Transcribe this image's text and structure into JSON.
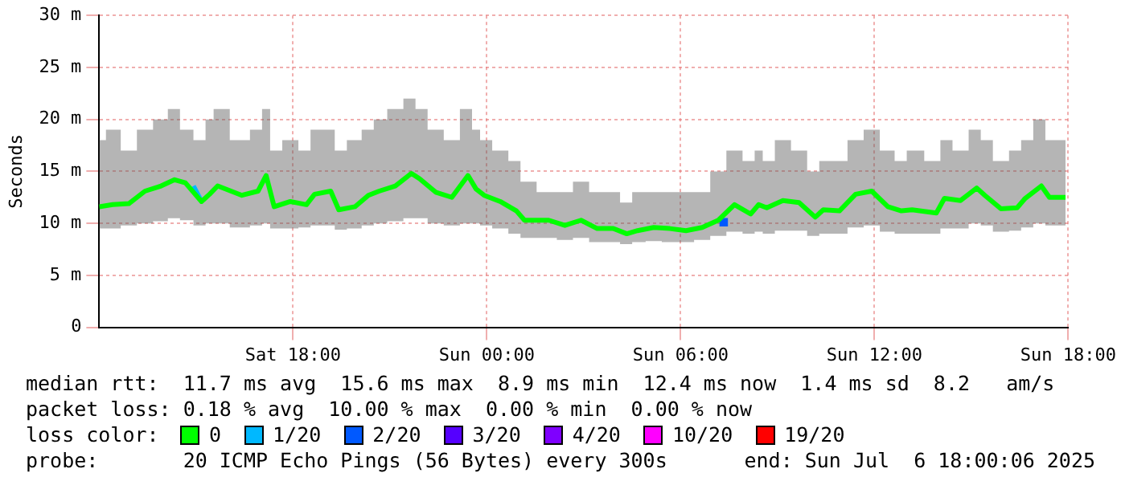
{
  "chart_data": {
    "type": "line",
    "ylabel": "Seconds",
    "xlim": [
      "2025-07-05T12:00",
      "2025-07-06T18:00"
    ],
    "xticks": [
      {
        "value": "2025-07-05T18:00",
        "label": "Sat 18:00"
      },
      {
        "value": "2025-07-06T00:00",
        "label": "Sun 00:00"
      },
      {
        "value": "2025-07-06T06:00",
        "label": "Sun 06:00"
      },
      {
        "value": "2025-07-06T12:00",
        "label": "Sun 12:00"
      },
      {
        "value": "2025-07-06T18:00",
        "label": "Sun 18:00"
      }
    ],
    "ylim": [
      0,
      30
    ],
    "yticks": [
      0,
      {
        "value": 5,
        "label": "5 m"
      },
      {
        "value": 10,
        "label": "10 m"
      },
      {
        "value": 15,
        "label": "15 m"
      },
      {
        "value": 20,
        "label": "20 m"
      },
      {
        "value": 25,
        "label": "25 m"
      },
      {
        "value": 30,
        "label": "30 m"
      }
    ],
    "grid": true,
    "legend": "bottom",
    "legend_title": "loss color:",
    "marker": "none",
    "line_style": "solid",
    "series": [
      {
        "name": "0",
        "color": "#00ff00",
        "type": "line",
        "x": [
          "2025-07-05T12:00",
          "2025-07-05T12:25",
          "2025-07-05T12:55",
          "2025-07-05T13:25",
          "2025-07-05T13:55",
          "2025-07-05T14:20",
          "2025-07-05T14:40",
          "2025-07-05T15:10",
          "2025-07-05T15:25",
          "2025-07-05T15:40",
          "2025-07-05T16:25",
          "2025-07-05T16:55",
          "2025-07-05T17:10",
          "2025-07-05T17:25",
          "2025-07-05T17:55",
          "2025-07-05T18:25",
          "2025-07-05T18:40",
          "2025-07-05T19:10",
          "2025-07-05T19:25",
          "2025-07-05T19:55",
          "2025-07-05T20:20",
          "2025-07-05T20:40",
          "2025-07-05T21:10",
          "2025-07-05T21:40",
          "2025-07-05T21:55",
          "2025-07-05T22:25",
          "2025-07-05T22:55",
          "2025-07-05T23:25",
          "2025-07-05T23:40",
          "2025-07-05T23:55",
          "2025-07-06T00:25",
          "2025-07-06T00:55",
          "2025-07-06T01:10",
          "2025-07-06T01:55",
          "2025-07-06T02:25",
          "2025-07-06T02:55",
          "2025-07-06T03:25",
          "2025-07-06T03:55",
          "2025-07-06T04:20",
          "2025-07-06T04:40",
          "2025-07-06T05:10",
          "2025-07-06T05:40",
          "2025-07-06T06:10",
          "2025-07-06T06:40",
          "2025-07-06T07:10",
          "2025-07-06T07:40",
          "2025-07-06T08:10",
          "2025-07-06T08:25",
          "2025-07-06T08:40",
          "2025-07-06T09:10",
          "2025-07-06T09:40",
          "2025-07-06T10:10",
          "2025-07-06T10:25",
          "2025-07-06T10:55",
          "2025-07-06T11:25",
          "2025-07-06T11:55",
          "2025-07-06T12:25",
          "2025-07-06T12:50",
          "2025-07-06T13:10",
          "2025-07-06T13:55",
          "2025-07-06T14:10",
          "2025-07-06T14:40",
          "2025-07-06T15:10",
          "2025-07-06T15:25",
          "2025-07-06T15:55",
          "2025-07-06T16:25",
          "2025-07-06T16:40",
          "2025-07-06T17:10",
          "2025-07-06T17:25",
          "2025-07-06T17:55"
        ],
        "values": [
          11.6,
          11.8,
          11.9,
          13.1,
          13.6,
          14.2,
          13.9,
          12.1,
          12.8,
          13.6,
          12.7,
          13.1,
          14.6,
          11.6,
          12.1,
          11.8,
          12.8,
          13.1,
          11.3,
          11.6,
          12.7,
          13.1,
          13.6,
          14.8,
          14.3,
          13.0,
          12.5,
          14.6,
          13.3,
          12.7,
          12.1,
          11.2,
          10.3,
          10.3,
          9.8,
          10.3,
          9.5,
          9.5,
          9.0,
          9.3,
          9.6,
          9.5,
          9.3,
          9.6,
          10.3,
          11.8,
          10.9,
          11.8,
          11.5,
          12.2,
          12.0,
          10.6,
          11.3,
          11.2,
          12.8,
          13.1,
          11.6,
          11.2,
          11.3,
          11.0,
          12.4,
          12.2,
          13.4,
          12.7,
          11.4,
          11.5,
          12.4,
          13.6,
          12.5,
          12.5
        ],
        "lower": [
          9.5,
          9.5,
          9.8,
          10.0,
          10.2,
          10.5,
          10.3,
          9.8,
          10.0,
          10.0,
          9.6,
          9.8,
          10.0,
          9.5,
          9.5,
          9.6,
          9.8,
          9.8,
          9.4,
          9.5,
          9.8,
          10.0,
          10.2,
          10.5,
          10.5,
          10.0,
          9.8,
          10.0,
          10.0,
          9.8,
          9.5,
          9.0,
          8.6,
          8.6,
          8.4,
          8.6,
          8.2,
          8.2,
          8.0,
          8.2,
          8.3,
          8.2,
          8.2,
          8.4,
          8.8,
          9.2,
          9.0,
          9.2,
          9.0,
          9.3,
          9.3,
          8.8,
          9.0,
          9.0,
          9.6,
          9.8,
          9.2,
          9.0,
          9.0,
          9.0,
          9.5,
          9.5,
          10.0,
          9.8,
          9.2,
          9.3,
          9.6,
          10.0,
          9.8,
          9.8
        ],
        "upper": [
          18,
          19,
          17,
          19,
          20,
          21,
          19,
          18,
          20,
          21,
          18,
          19,
          21,
          17,
          18,
          17,
          19,
          19,
          17,
          18,
          19,
          20,
          21,
          22,
          21,
          19,
          18,
          21,
          19,
          18,
          17,
          16,
          14,
          13,
          13,
          14,
          13,
          13,
          12,
          13,
          13,
          13,
          13,
          13,
          15,
          17,
          16,
          17,
          16,
          18,
          17,
          15,
          16,
          16,
          18,
          19,
          17,
          16,
          17,
          16,
          18,
          17,
          19,
          18,
          16,
          17,
          18,
          20,
          18,
          18
        ]
      },
      {
        "name": "1/20",
        "color": "#00b8ff",
        "type": "line",
        "x": [
          "2025-07-05T14:55",
          "2025-07-05T15:10"
        ],
        "values": [
          13.6,
          12.1
        ]
      },
      {
        "name": "2/20",
        "color": "#0059ff",
        "type": "scatter",
        "marker": "square",
        "x": [
          "2025-07-06T07:20"
        ],
        "values": [
          10.1
        ]
      },
      {
        "name": "3/20",
        "color": "#5500ff",
        "type": "line"
      },
      {
        "name": "4/20",
        "color": "#7f00ff",
        "type": "line"
      },
      {
        "name": "10/20",
        "color": "#ff00ff",
        "type": "line"
      },
      {
        "name": "19/20",
        "color": "#ff0000",
        "type": "line"
      }
    ],
    "annotations": [
      "median rtt:  11.7 ms avg  15.6 ms max  8.9 ms min  12.4 ms now  1.4 ms sd  8.2   am/s",
      "packet loss: 0.18 % avg  10.00 % max  0.00 % min  0.00 % now",
      "probe:       20 ICMP Echo Pings (56 Bytes) every 300s",
      "end: Sun Jul  6 18:00:06 2025"
    ]
  }
}
